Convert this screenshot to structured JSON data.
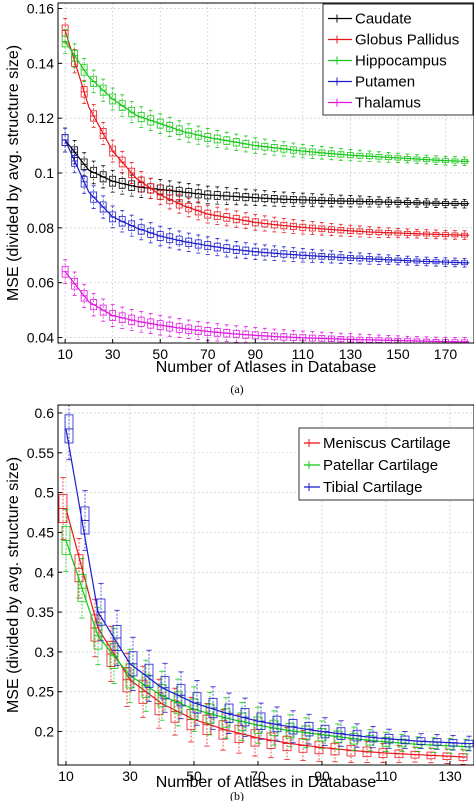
{
  "chart_data": [
    {
      "type": "line",
      "panel_caption": "(a)",
      "xlabel": "Number of Atlases in Database",
      "ylabel": "MSE (divided by avg. structure size)",
      "xlim": [
        7,
        182
      ],
      "ylim": [
        0.038,
        0.162
      ],
      "xticks": [
        10,
        30,
        50,
        70,
        90,
        110,
        130,
        150,
        170
      ],
      "yticks": [
        0.04,
        0.06,
        0.08,
        0.1,
        0.12,
        0.14,
        0.16
      ],
      "ytick_labels": [
        "0.04",
        "0.06",
        "0.08",
        "0.1",
        "0.12",
        "0.14",
        "0.16"
      ],
      "grid": true,
      "legend_position": "top-right",
      "series": [
        {
          "name": "Caudate",
          "color": "#000000",
          "box_color": "#000000",
          "x": [
            10,
            20,
            30,
            40,
            50,
            60,
            70,
            80,
            90,
            100,
            110,
            120,
            130,
            140,
            150,
            160,
            170,
            180
          ],
          "values": [
            0.112,
            0.101,
            0.097,
            0.095,
            0.094,
            0.093,
            0.092,
            0.0915,
            0.091,
            0.0905,
            0.0902,
            0.0899,
            0.0897,
            0.0895,
            0.0893,
            0.0891,
            0.0889,
            0.0888
          ]
        },
        {
          "name": "Globus Pallidus",
          "color": "#e8161c",
          "box_color": "#e8161c",
          "x": [
            10,
            20,
            30,
            40,
            50,
            60,
            70,
            80,
            90,
            100,
            110,
            120,
            130,
            140,
            150,
            160,
            170,
            180
          ],
          "values": [
            0.152,
            0.124,
            0.108,
            0.098,
            0.092,
            0.088,
            0.085,
            0.0835,
            0.082,
            0.081,
            0.0802,
            0.0795,
            0.0789,
            0.0784,
            0.0781,
            0.0778,
            0.0775,
            0.0773
          ]
        },
        {
          "name": "Hippocampus",
          "color": "#16c816",
          "box_color": "#16c816",
          "x": [
            10,
            20,
            30,
            40,
            50,
            60,
            70,
            80,
            90,
            100,
            110,
            120,
            130,
            140,
            150,
            160,
            170,
            180
          ],
          "values": [
            0.148,
            0.135,
            0.127,
            0.121,
            0.118,
            0.115,
            0.113,
            0.1115,
            0.11,
            0.109,
            0.108,
            0.1072,
            0.1065,
            0.106,
            0.1055,
            0.105,
            0.1045,
            0.1042
          ]
        },
        {
          "name": "Putamen",
          "color": "#1c1ccc",
          "box_color": "#1c1ccc",
          "x": [
            10,
            20,
            30,
            40,
            50,
            60,
            70,
            80,
            90,
            100,
            110,
            120,
            130,
            140,
            150,
            160,
            170,
            180
          ],
          "values": [
            0.112,
            0.093,
            0.084,
            0.08,
            0.077,
            0.075,
            0.0735,
            0.0722,
            0.0713,
            0.0706,
            0.07,
            0.0695,
            0.069,
            0.0686,
            0.0682,
            0.0678,
            0.0675,
            0.0672
          ]
        },
        {
          "name": "Thalamus",
          "color": "#e016e0",
          "box_color": "#e016e0",
          "x": [
            10,
            20,
            30,
            40,
            50,
            60,
            70,
            80,
            90,
            100,
            110,
            120,
            130,
            140,
            150,
            160,
            170,
            180
          ],
          "values": [
            0.064,
            0.053,
            0.048,
            0.046,
            0.0445,
            0.0432,
            0.0422,
            0.0414,
            0.0408,
            0.0403,
            0.0399,
            0.0396,
            0.0393,
            0.0391,
            0.0389,
            0.0387,
            0.0385,
            0.0384
          ]
        }
      ]
    },
    {
      "type": "line",
      "panel_caption": "(b)",
      "xlabel": "Number of Atlases in Database",
      "ylabel": "MSE (divided by avg. structure size)",
      "xlim": [
        7.5,
        137.5
      ],
      "ylim": [
        0.158,
        0.61
      ],
      "xticks": [
        10,
        30,
        50,
        70,
        90,
        110,
        130
      ],
      "yticks": [
        0.2,
        0.25,
        0.3,
        0.35,
        0.4,
        0.45,
        0.5,
        0.55,
        0.6
      ],
      "ytick_labels": [
        "0.2",
        "0.25",
        "0.3",
        "0.35",
        "0.4",
        "0.45",
        "0.5",
        "0.55",
        "0.6"
      ],
      "grid": true,
      "legend_position": "top-right",
      "series": [
        {
          "name": "Meniscus Cartilage",
          "color": "#e8161c",
          "box_color": "#e8161c",
          "x": [
            10,
            20,
            30,
            40,
            50,
            60,
            70,
            80,
            90,
            100,
            110,
            120,
            130,
            135
          ],
          "values": [
            0.48,
            0.33,
            0.265,
            0.235,
            0.215,
            0.202,
            0.192,
            0.185,
            0.18,
            0.176,
            0.173,
            0.171,
            0.169,
            0.168
          ]
        },
        {
          "name": "Patellar Cartilage",
          "color": "#16c816",
          "box_color": "#16c816",
          "x": [
            10,
            20,
            30,
            40,
            50,
            60,
            70,
            80,
            90,
            100,
            110,
            120,
            130,
            135
          ],
          "values": [
            0.44,
            0.32,
            0.27,
            0.245,
            0.228,
            0.217,
            0.208,
            0.201,
            0.196,
            0.191,
            0.187,
            0.184,
            0.182,
            0.181
          ]
        },
        {
          "name": "Tibial Cartilage",
          "color": "#1c1ccc",
          "box_color": "#1c1ccc",
          "x": [
            10,
            20,
            30,
            40,
            50,
            60,
            70,
            80,
            90,
            100,
            110,
            120,
            130,
            135
          ],
          "values": [
            0.58,
            0.35,
            0.285,
            0.255,
            0.236,
            0.223,
            0.213,
            0.206,
            0.2,
            0.195,
            0.191,
            0.188,
            0.186,
            0.185
          ]
        }
      ]
    }
  ]
}
